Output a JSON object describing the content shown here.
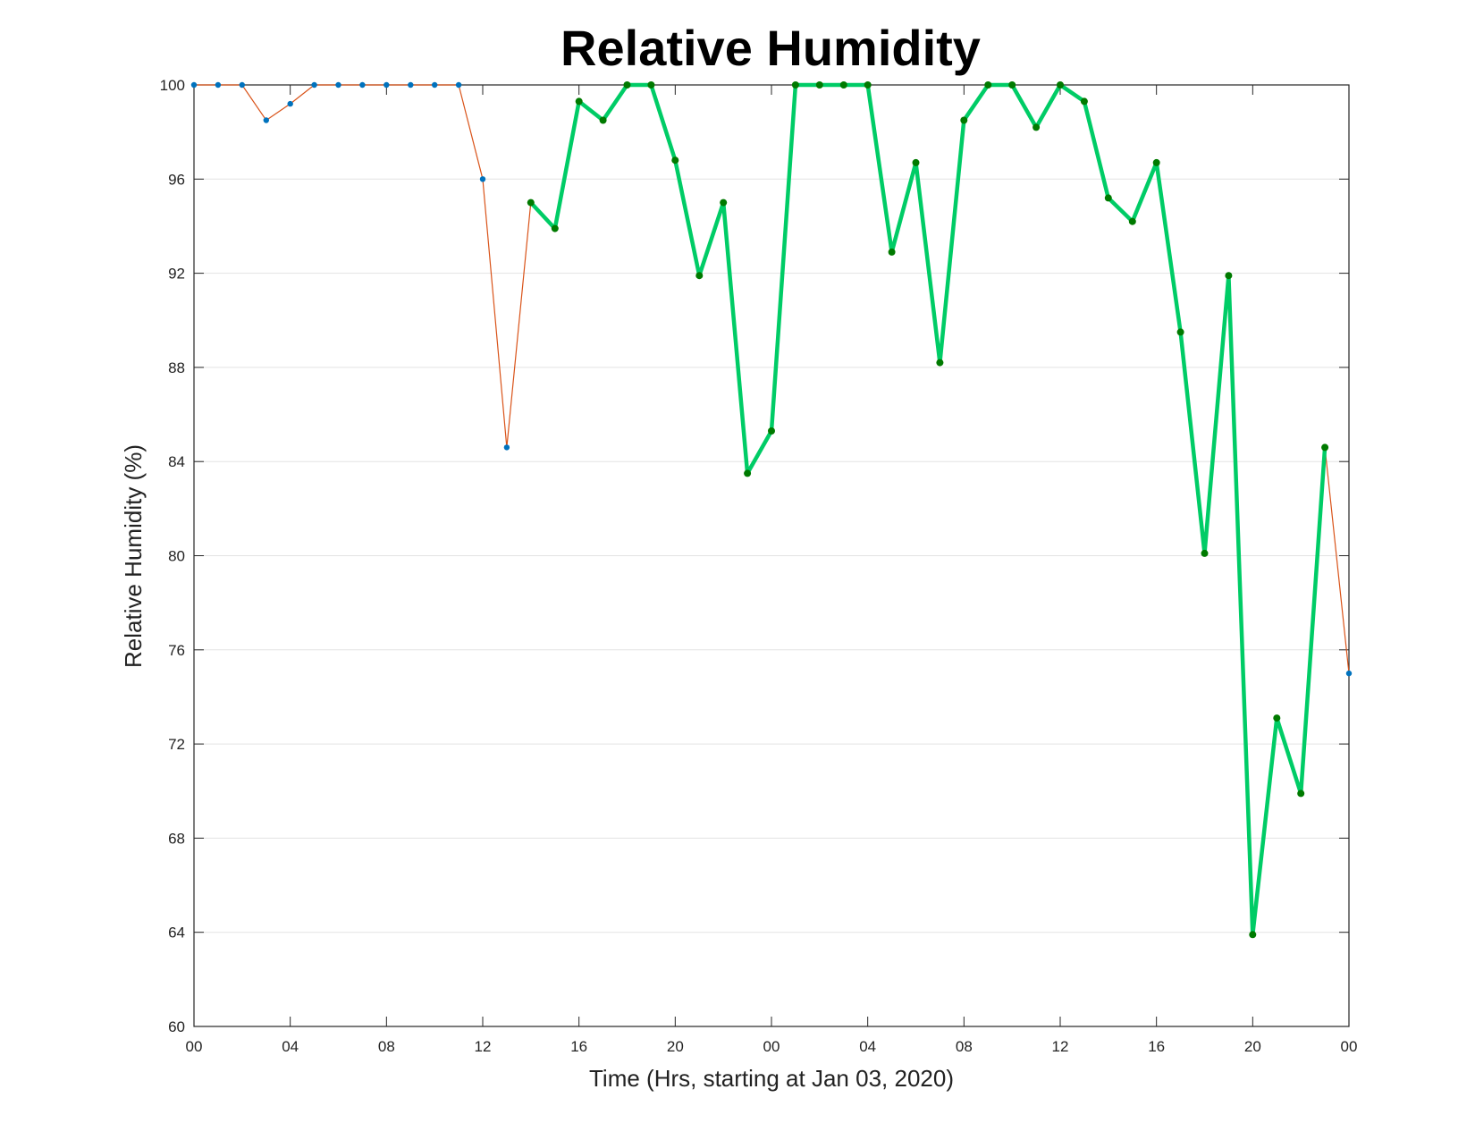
{
  "chart_data": {
    "type": "line",
    "title": "Relative Humidity",
    "xlabel": "Time (Hrs, starting at Jan 03, 2020)",
    "ylabel": "Relative Humidity (%)",
    "x_tick_labels": [
      "00",
      "04",
      "08",
      "12",
      "16",
      "20",
      "00",
      "04",
      "08",
      "12",
      "16",
      "20",
      "00"
    ],
    "x_tick_hours": [
      0,
      4,
      8,
      12,
      16,
      20,
      24,
      28,
      32,
      36,
      40,
      44,
      48
    ],
    "xlim_hours": [
      0,
      48
    ],
    "yticks": [
      60,
      64,
      68,
      72,
      76,
      80,
      84,
      88,
      92,
      96,
      100
    ],
    "ylim": [
      60,
      100
    ],
    "grid": "horizontal",
    "series": [
      {
        "hours": [
          0,
          1,
          2,
          3,
          4,
          5,
          6,
          7,
          8,
          9,
          10,
          11,
          12,
          13,
          14,
          15,
          16,
          17,
          18,
          19,
          20,
          21,
          22,
          23,
          24,
          25,
          26,
          27,
          28,
          29,
          30,
          31,
          32,
          33,
          34,
          35,
          36,
          37,
          38,
          39,
          40,
          41,
          42,
          43,
          44,
          45,
          46,
          47,
          48
        ],
        "values": [
          100,
          100,
          100,
          98.5,
          99.2,
          100,
          100,
          100,
          100,
          100,
          100,
          100,
          96.0,
          84.6,
          95.0,
          93.9,
          99.3,
          98.5,
          100,
          100,
          96.8,
          91.9,
          95.0,
          83.5,
          85.3,
          100,
          100,
          100,
          100,
          92.9,
          96.7,
          88.2,
          98.5,
          100,
          100,
          98.2,
          100,
          99.3,
          95.2,
          94.2,
          96.7,
          89.5,
          80.1,
          91.9,
          63.9,
          73.1,
          69.9,
          84.6,
          75.0
        ],
        "color": "#D95319",
        "marker_color": "#0072BD"
      },
      {
        "hours": [
          14,
          15,
          16,
          17,
          18,
          19,
          20,
          21,
          22,
          23,
          24,
          25,
          26,
          27,
          28,
          29,
          30,
          31,
          32,
          33,
          34,
          35,
          36,
          37,
          38,
          39,
          40,
          41,
          42,
          43,
          44,
          45,
          46,
          47
        ],
        "values": [
          95.0,
          93.9,
          99.3,
          98.5,
          100,
          100,
          96.8,
          91.9,
          95.0,
          83.5,
          85.3,
          100,
          100,
          100,
          100,
          92.9,
          96.7,
          88.2,
          98.5,
          100,
          100,
          98.2,
          100,
          99.3,
          95.2,
          94.2,
          96.7,
          89.5,
          80.1,
          91.9,
          63.9,
          73.1,
          69.9,
          84.6
        ],
        "color": "#00CC66",
        "marker_color": "#007A00"
      }
    ]
  }
}
